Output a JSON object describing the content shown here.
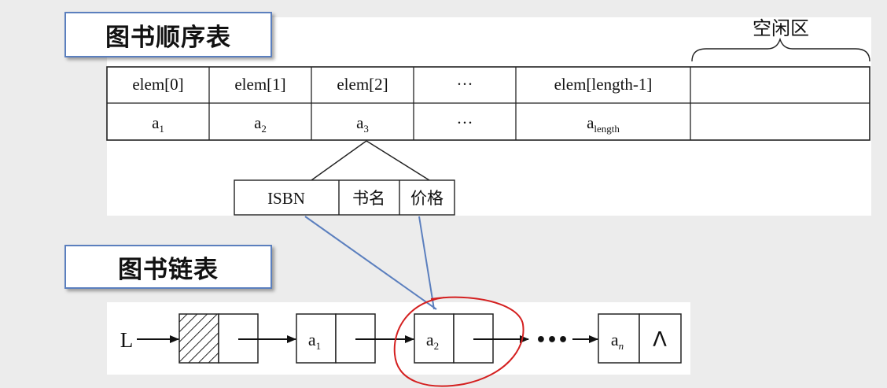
{
  "sequential": {
    "title": "图书顺序表",
    "free_area_label": "空闲区",
    "columns": [
      {
        "index": "elem[0]",
        "elem": "a",
        "sub": "1"
      },
      {
        "index": "elem[1]",
        "elem": "a",
        "sub": "2"
      },
      {
        "index": "elem[2]",
        "elem": "a",
        "sub": "3"
      },
      {
        "index": "···",
        "elem": "···",
        "sub": ""
      },
      {
        "index": "elem[length-1]",
        "elem": "a",
        "sub": "length"
      },
      {
        "index": "",
        "elem": "",
        "sub": ""
      }
    ],
    "record_fields": [
      "ISBN",
      "书名",
      "价格"
    ]
  },
  "linked": {
    "title": "图书链表",
    "head_label": "L",
    "nodes": [
      {
        "data": "a",
        "sub": "1"
      },
      {
        "data": "a",
        "sub": "2"
      }
    ],
    "ellipsis": "•••",
    "last_node": {
      "data": "a",
      "sub": "n"
    },
    "null_symbol": "Λ"
  },
  "colors": {
    "connector_lines": "#5b7fbe",
    "annotation_circle": "#d42020",
    "title_border": "#5b7fbe"
  }
}
